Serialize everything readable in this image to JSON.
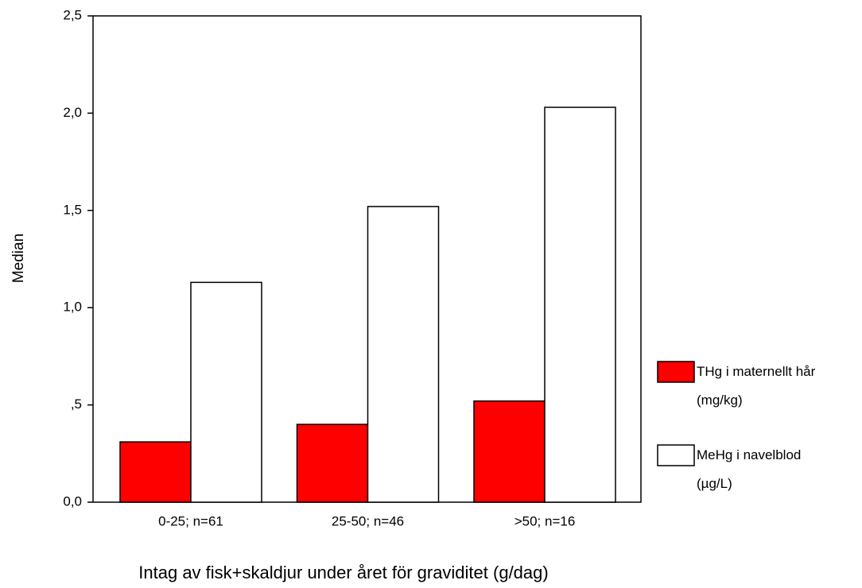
{
  "chart_data": {
    "type": "bar",
    "xlabel": "Intag av fisk+skaldjur under året för graviditet (g/dag)",
    "ylabel": "Median",
    "categories": [
      "0-25; n=61",
      "25-50; n=46",
      ">50; n=16"
    ],
    "series": [
      {
        "name": "THg i maternellt hår (mg/kg)",
        "color": "#ff0000",
        "values": [
          0.31,
          0.4,
          0.52
        ]
      },
      {
        "name": "MeHg i navelblod (µg/L)",
        "color": "#ffffff",
        "values": [
          1.13,
          1.52,
          2.03
        ]
      }
    ],
    "ylim": [
      0,
      2.5
    ],
    "yticks": [
      {
        "value": 0,
        "label": "0,0"
      },
      {
        "value": 0.5,
        "label": ",5"
      },
      {
        "value": 1,
        "label": "1,0"
      },
      {
        "value": 1.5,
        "label": "1,5"
      },
      {
        "value": 2,
        "label": "2,0"
      },
      {
        "value": 2.5,
        "label": "2,5"
      }
    ],
    "legend": "right"
  }
}
